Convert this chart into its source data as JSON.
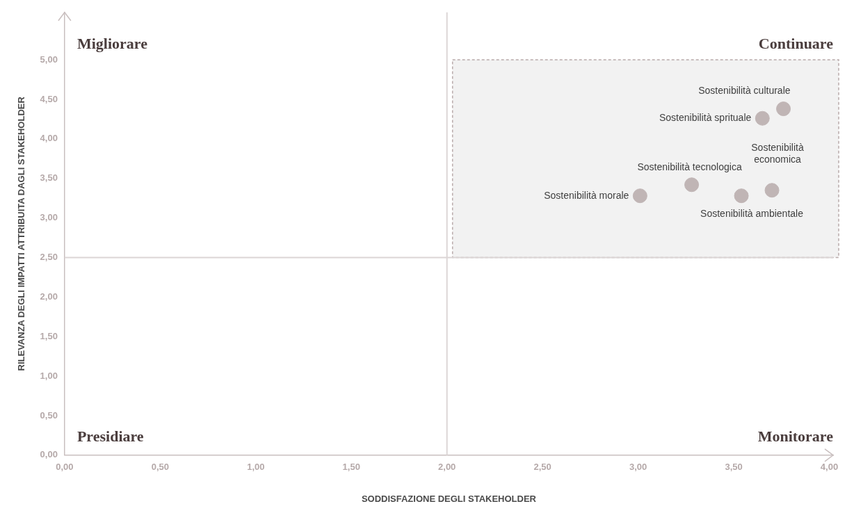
{
  "chart_data": {
    "type": "scatter",
    "xlabel": "SODDISFAZIONE DEGLI STAKEHOLDER",
    "ylabel": "RILEVANZA DEGLI IMPATTI ATTRIBUITA DAGLI STAKEHOLDER",
    "series": [
      {
        "color": "#c0b5b5",
        "x": [
          3.76,
          3.65,
          3.28,
          3.01,
          3.54,
          3.7
        ],
        "values": [
          4.38,
          4.26,
          3.42,
          3.28,
          3.28,
          3.35
        ]
      }
    ],
    "xlim": [
      0,
      4.02
    ],
    "ylim": [
      0,
      5.6
    ],
    "xticks": [
      {
        "value": 0,
        "label": "0,00"
      },
      {
        "value": 0.5,
        "label": "0,50"
      },
      {
        "value": 1,
        "label": "1,00"
      },
      {
        "value": 1.5,
        "label": "1,50"
      },
      {
        "value": 2,
        "label": "2,00"
      },
      {
        "value": 2.5,
        "label": "2,50"
      },
      {
        "value": 3,
        "label": "3,00"
      },
      {
        "value": 3.5,
        "label": "3,50"
      },
      {
        "value": 4,
        "label": "4,00"
      }
    ],
    "yticks": [
      {
        "value": 0,
        "label": "0,00"
      },
      {
        "value": 0.5,
        "label": "0,50"
      },
      {
        "value": 1,
        "label": "1,00"
      },
      {
        "value": 1.5,
        "label": "1,50"
      },
      {
        "value": 2,
        "label": "2,00"
      },
      {
        "value": 2.5,
        "label": "2,50"
      },
      {
        "value": 3,
        "label": "3,00"
      },
      {
        "value": 3.5,
        "label": "3,50"
      },
      {
        "value": 4,
        "label": "4,00"
      },
      {
        "value": 4.5,
        "label": "4,50"
      },
      {
        "value": 5,
        "label": "5,00"
      }
    ],
    "ref_lines": [
      {
        "axis": "x",
        "value": 2,
        "color": "#dcd6d6"
      },
      {
        "axis": "y",
        "value": 2.5,
        "color": "#dcd6d6"
      }
    ],
    "bands": [
      {
        "axis": "y",
        "from": 2.5,
        "to": 5,
        "color": "#f2f2f2"
      }
    ],
    "annotations": [
      "Migliorare",
      "Continuare",
      "Presidiare",
      "Monitorare",
      {
        "text": "Sostenibilità culturale",
        "x": 3.76,
        "y": 4.38
      },
      {
        "text": "Sostenibilità sprituale",
        "x": 3.65,
        "y": 4.26
      },
      {
        "text": "Sostenibilità tecnologica",
        "x": 3.28,
        "y": 3.42
      },
      {
        "text": "Sostenibilità morale",
        "x": 3.01,
        "y": 3.28
      },
      {
        "text": "Sostenibilità ambientale",
        "x": 3.54,
        "y": 3.28
      },
      {
        "text": "Sostenibilità\neconomica",
        "x": 3.7,
        "y": 3.35
      }
    ],
    "grid": false,
    "legend": false,
    "marker": "circle"
  }
}
